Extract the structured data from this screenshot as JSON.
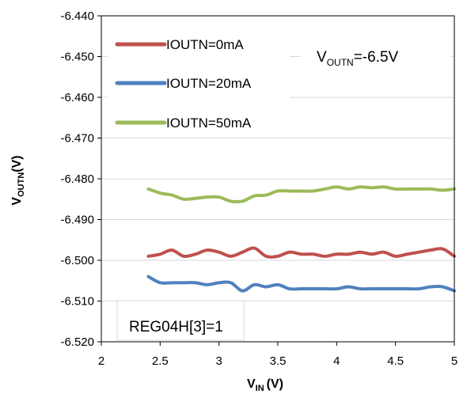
{
  "chart_data": {
    "type": "line",
    "title": "",
    "xlabel": {
      "main": "V",
      "sub": "IN",
      "unit": "(V)"
    },
    "ylabel": {
      "main": "V",
      "sub": "OUTN",
      "unit": "(V)"
    },
    "xlim": [
      2,
      5
    ],
    "ylim": [
      -6.52,
      -6.44
    ],
    "x_ticks": [
      "2",
      "2.5",
      "3",
      "3.5",
      "4",
      "4.5",
      "5"
    ],
    "y_ticks": [
      "-6.440",
      "-6.450",
      "-6.460",
      "-6.470",
      "-6.480",
      "-6.490",
      "-6.500",
      "-6.510",
      "-6.520"
    ],
    "grid": "horizontal",
    "legend_position": "top-left",
    "annotations": {
      "vout": {
        "main": "V",
        "sub": "OUTN",
        "rest": "=-6.5V"
      },
      "reg": "REG04H[3]=1"
    },
    "x": [
      2.4,
      2.5,
      2.6,
      2.7,
      2.8,
      2.9,
      3.0,
      3.1,
      3.2,
      3.3,
      3.4,
      3.5,
      3.6,
      3.7,
      3.8,
      3.9,
      4.0,
      4.1,
      4.2,
      4.3,
      4.4,
      4.5,
      4.6,
      4.7,
      4.8,
      4.9,
      5.0
    ],
    "series": [
      {
        "name": "IOUTN=0mA",
        "color": "#c0504d",
        "values": [
          -6.499,
          -6.4985,
          -6.4975,
          -6.499,
          -6.4985,
          -6.4975,
          -6.498,
          -6.499,
          -6.498,
          -6.497,
          -6.499,
          -6.499,
          -6.498,
          -6.4985,
          -6.4985,
          -6.499,
          -6.4985,
          -6.4985,
          -6.498,
          -6.4985,
          -6.498,
          -6.499,
          -6.4985,
          -6.498,
          -6.4975,
          -6.4972,
          -6.499
        ]
      },
      {
        "name": "IOUTN=20mA",
        "color": "#4f81bd",
        "values": [
          -6.504,
          -6.5055,
          -6.5055,
          -6.5055,
          -6.5055,
          -6.506,
          -6.5055,
          -6.5055,
          -6.5075,
          -6.506,
          -6.5065,
          -6.506,
          -6.507,
          -6.507,
          -6.507,
          -6.507,
          -6.507,
          -6.5065,
          -6.507,
          -6.507,
          -6.507,
          -6.507,
          -6.507,
          -6.507,
          -6.5065,
          -6.5065,
          -6.5075
        ]
      },
      {
        "name": "IOUTN=50mA",
        "color": "#9bbb59",
        "values": [
          -6.4825,
          -6.4835,
          -6.484,
          -6.485,
          -6.4848,
          -6.4845,
          -6.4845,
          -6.4855,
          -6.4855,
          -6.4842,
          -6.484,
          -6.483,
          -6.483,
          -6.483,
          -6.483,
          -6.4825,
          -6.482,
          -6.4825,
          -6.482,
          -6.4822,
          -6.482,
          -6.4825,
          -6.4825,
          -6.4825,
          -6.4825,
          -6.4828,
          -6.4825
        ]
      }
    ]
  }
}
